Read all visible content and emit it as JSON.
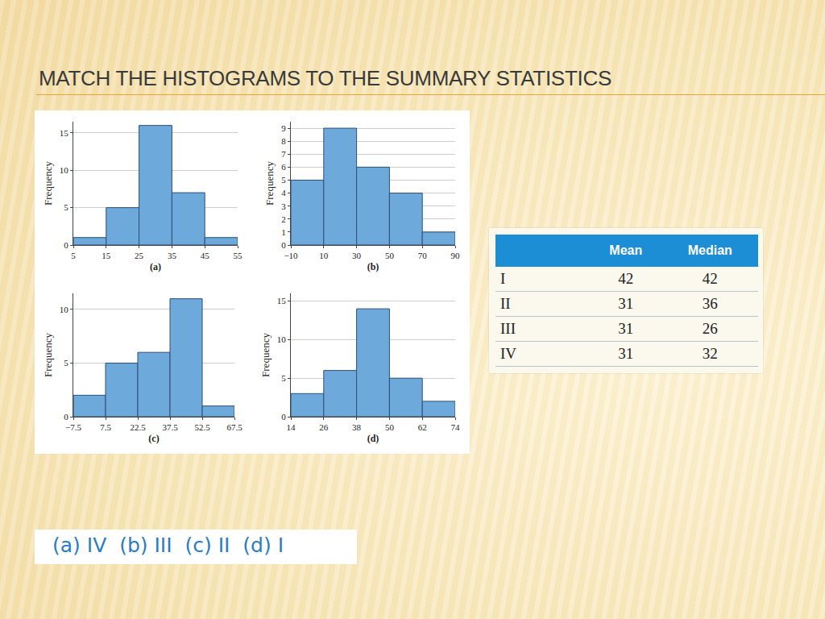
{
  "title": "MATCH THE HISTOGRAMS TO THE SUMMARY STATISTICS",
  "chart_data": [
    {
      "type": "histogram",
      "x_label": "(a)",
      "y_label": "Frequency",
      "color": "#6ea9dc",
      "grid": true,
      "bins": [
        5,
        15,
        25,
        35,
        45,
        55
      ],
      "values": [
        1,
        5,
        16,
        7,
        1
      ],
      "xlim": [
        5,
        55
      ],
      "xticks": [
        5,
        15,
        25,
        35,
        45,
        55
      ],
      "ylim": [
        0,
        16.5
      ],
      "yticks": [
        0,
        5,
        10,
        15
      ]
    },
    {
      "type": "histogram",
      "x_label": "(b)",
      "y_label": "Frequency",
      "color": "#6ea9dc",
      "grid": true,
      "bins": [
        -10,
        10,
        30,
        50,
        70,
        90
      ],
      "values": [
        5,
        9,
        6,
        4,
        1
      ],
      "xlim": [
        -10,
        90
      ],
      "xticks": [
        {
          "value": -10,
          "label": "−10"
        },
        10,
        30,
        50,
        70,
        90
      ],
      "ylim": [
        0,
        9.5
      ],
      "yticks": [
        0,
        1,
        2,
        3,
        4,
        5,
        6,
        7,
        8,
        9
      ]
    },
    {
      "type": "histogram",
      "x_label": "(c)",
      "y_label": "Frequency",
      "color": "#6ea9dc",
      "grid": true,
      "bins": [
        -7.5,
        7.5,
        22.5,
        37.5,
        52.5,
        67.5
      ],
      "values": [
        2,
        5,
        6,
        11,
        1
      ],
      "xlim": [
        -7.5,
        67.5
      ],
      "xticks": [
        {
          "value": -7.5,
          "label": "−7.5"
        },
        7.5,
        22.5,
        37.5,
        52.5,
        67.5
      ],
      "ylim": [
        0,
        11.5
      ],
      "yticks": [
        0,
        5,
        10
      ]
    },
    {
      "type": "histogram",
      "x_label": "(d)",
      "y_label": "Frequency",
      "color": "#6ea9dc",
      "grid": true,
      "bins": [
        14,
        26,
        38,
        50,
        62,
        74
      ],
      "values": [
        3,
        6,
        14,
        5,
        2
      ],
      "xlim": [
        14,
        74
      ],
      "xticks": [
        14,
        26,
        38,
        50,
        62,
        74
      ],
      "ylim": [
        0,
        16
      ],
      "yticks": [
        0,
        5,
        10,
        15
      ]
    }
  ],
  "table": {
    "columns": [
      "Mean",
      "Median"
    ],
    "rows": [
      {
        "label": "I",
        "values": [
          42,
          42
        ]
      },
      {
        "label": "II",
        "values": [
          31,
          36
        ]
      },
      {
        "label": "III",
        "values": [
          31,
          26
        ]
      },
      {
        "label": "IV",
        "values": [
          31,
          32
        ]
      }
    ]
  },
  "answer": "(a) IV  (b) III  (c) II  (d) I"
}
